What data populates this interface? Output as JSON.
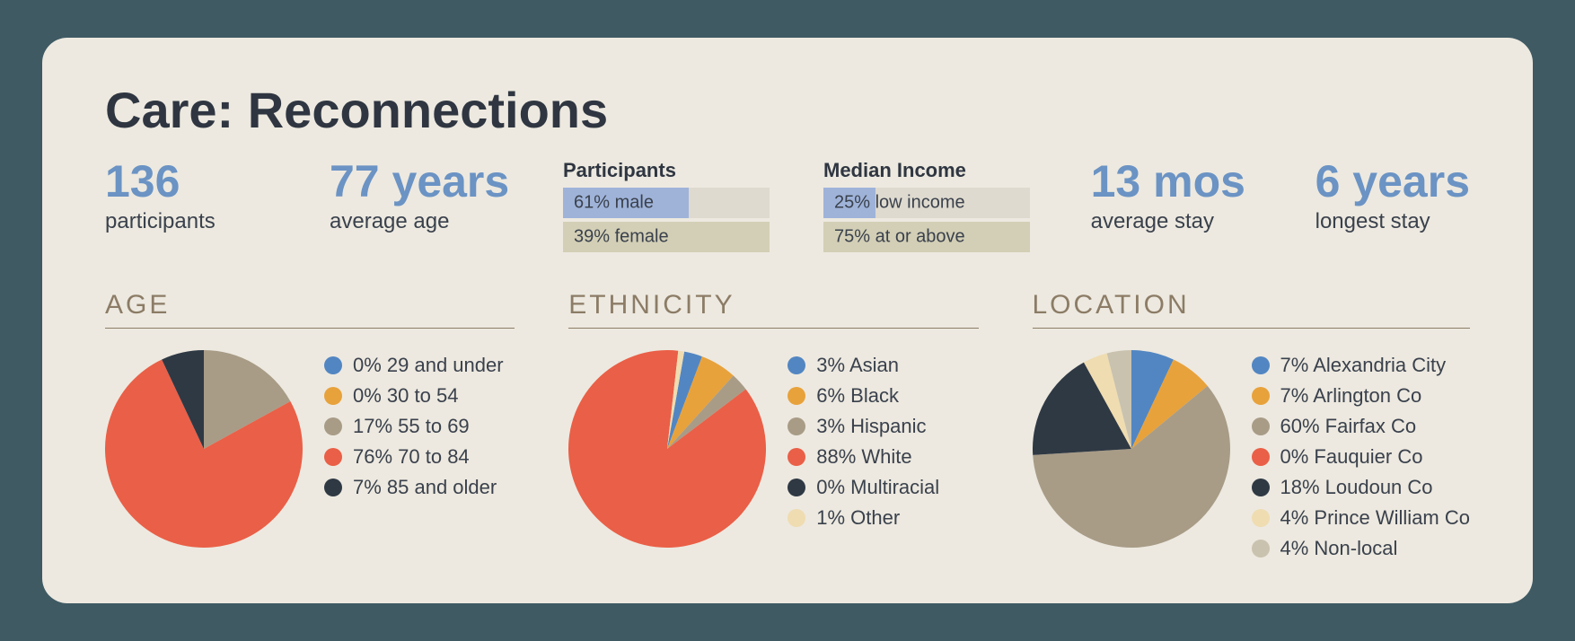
{
  "title": "Care: Reconnections",
  "colors": {
    "background_outer": "#3f5a63",
    "background_card": "#ede9e0",
    "text_dark": "#2f3641",
    "text_body": "#3a414c",
    "accent_blue": "#6b93c4",
    "section_heading": "#8c7c66",
    "bar_bg_light": "#dedacf",
    "bar_bg_beige": "#d3cfb6",
    "bar_fill_blue": "#9fb3d9"
  },
  "stats": {
    "participants": {
      "value": "136",
      "label": "participants"
    },
    "avg_age": {
      "value": "77 years",
      "label": "average age"
    },
    "avg_stay": {
      "value": "13 mos",
      "label": "average stay"
    },
    "longest_stay": {
      "value": "6 years",
      "label": "longest stay"
    }
  },
  "bars": {
    "participants": {
      "title": "Participants",
      "rows": [
        {
          "pct": 61,
          "label": "61% male",
          "fill": "#9fb3d9",
          "bg": "#dedacf"
        },
        {
          "pct": 39,
          "label": "39% female",
          "fill": "transparent",
          "bg": "#d3cfb6"
        }
      ]
    },
    "income": {
      "title": "Median Income",
      "rows": [
        {
          "pct": 25,
          "label": "25% low income",
          "fill": "#9fb3d9",
          "bg": "#dedacf"
        },
        {
          "pct": 75,
          "label": "75% at or above",
          "fill": "transparent",
          "bg": "#d3cfb6"
        }
      ]
    }
  },
  "palette": {
    "blue": "#5286c2",
    "orange": "#e8a23b",
    "taupe": "#a89c87",
    "coral": "#ea5f47",
    "charcoal": "#2f3944",
    "cream": "#efdcb0",
    "lightgrey": "#c9c2af"
  },
  "charts": {
    "age": {
      "title": "AGE",
      "slices": [
        {
          "pct": 0,
          "color": "#5286c2",
          "label": "0% 29 and under"
        },
        {
          "pct": 0,
          "color": "#e8a23b",
          "label": "0% 30 to 54"
        },
        {
          "pct": 17,
          "color": "#a89c87",
          "label": "17% 55 to 69"
        },
        {
          "pct": 76,
          "color": "#ea5f47",
          "label": "76% 70 to 84"
        },
        {
          "pct": 7,
          "color": "#2f3944",
          "label": "7% 85 and older"
        }
      ],
      "start_angle": -90
    },
    "ethnicity": {
      "title": "ETHNICITY",
      "slices": [
        {
          "pct": 3,
          "color": "#5286c2",
          "label": "3% Asian"
        },
        {
          "pct": 6,
          "color": "#e8a23b",
          "label": "6% Black"
        },
        {
          "pct": 3,
          "color": "#a89c87",
          "label": "3% Hispanic"
        },
        {
          "pct": 88,
          "color": "#ea5f47",
          "label": "88% White"
        },
        {
          "pct": 0,
          "color": "#2f3944",
          "label": "0% Multiracial"
        },
        {
          "pct": 1,
          "color": "#efdcb0",
          "label": "1% Other"
        }
      ],
      "start_angle": -80
    },
    "location": {
      "title": "LOCATION",
      "slices": [
        {
          "pct": 7,
          "color": "#5286c2",
          "label": "7% Alexandria City"
        },
        {
          "pct": 7,
          "color": "#e8a23b",
          "label": "7% Arlington Co"
        },
        {
          "pct": 60,
          "color": "#a89c87",
          "label": "60% Fairfax Co"
        },
        {
          "pct": 0,
          "color": "#ea5f47",
          "label": "0% Fauquier Co"
        },
        {
          "pct": 18,
          "color": "#2f3944",
          "label": "18% Loudoun Co"
        },
        {
          "pct": 4,
          "color": "#efdcb0",
          "label": "4% Prince William Co"
        },
        {
          "pct": 4,
          "color": "#c9c2af",
          "label": "4% Non-local"
        }
      ],
      "start_angle": -90
    }
  }
}
